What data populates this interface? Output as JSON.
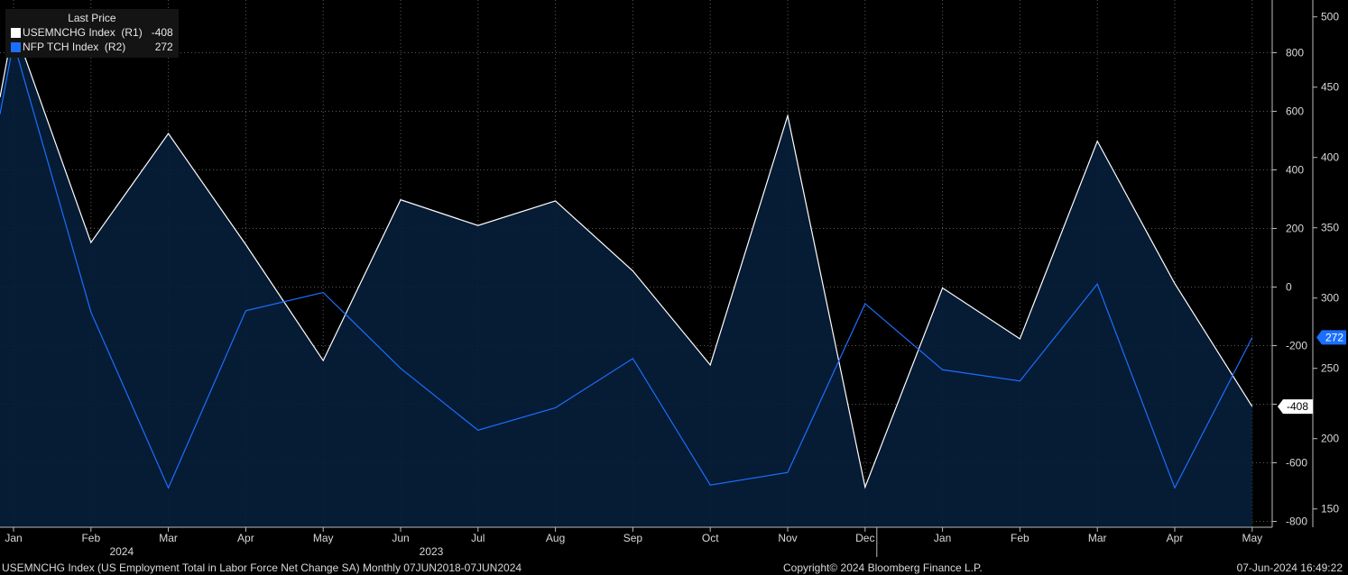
{
  "legend": {
    "header": "Last Price",
    "series": [
      {
        "label": "USEMNCHG Index  (R1)",
        "value": "-408",
        "color": "#ffffff"
      },
      {
        "label": "NFP TCH Index  (R2)",
        "value": "272",
        "color": "#1a6fff"
      }
    ]
  },
  "footer": {
    "left": "USEMNCHG Index (US Employment Total in Labor Force Net Change SA)  Monthly 07JUN2018-07JUN2024",
    "center": "Copyright© 2024 Bloomberg Finance L.P.",
    "right": "07-Jun-2024 16:49:22"
  },
  "chart_data": {
    "type": "line",
    "x": [
      "Jan",
      "Feb",
      "Mar",
      "Apr",
      "May",
      "Jun",
      "Jul",
      "Aug",
      "Sep",
      "Oct",
      "Nov",
      "Dec",
      "Jan",
      "Feb",
      "Mar",
      "Apr",
      "May"
    ],
    "year_labels": [
      {
        "label": "2023",
        "at": "Jun"
      },
      {
        "label": "2024",
        "at": "Feb"
      }
    ],
    "series": [
      {
        "name": "USEMNCHG Index (R1)",
        "axis": "R1",
        "color": "#ffffff",
        "fill": "#071e3a",
        "values": [
          894,
          152,
          524,
          145,
          -251,
          298,
          210,
          294,
          55,
          -266,
          585,
          -683,
          -3,
          -177,
          498,
          12,
          -408
        ],
        "last_label": "-408"
      },
      {
        "name": "NFP TCH Index (R2)",
        "axis": "R2",
        "color": "#1a6fff",
        "values": [
          482,
          290,
          165,
          291,
          304,
          250,
          206,
          222,
          257,
          167,
          176,
          296,
          249,
          241,
          310,
          165,
          272
        ],
        "last_label": "272"
      }
    ],
    "y_axes": {
      "R1": {
        "ticks": [
          800,
          600,
          400,
          200,
          0,
          -200,
          -400,
          -600,
          -800
        ],
        "range": [
          -820,
          980
        ]
      },
      "R2": {
        "ticks": [
          500,
          450,
          400,
          350,
          300,
          250,
          200,
          150
        ],
        "range": [
          137,
          512
        ]
      }
    },
    "grid": true
  }
}
